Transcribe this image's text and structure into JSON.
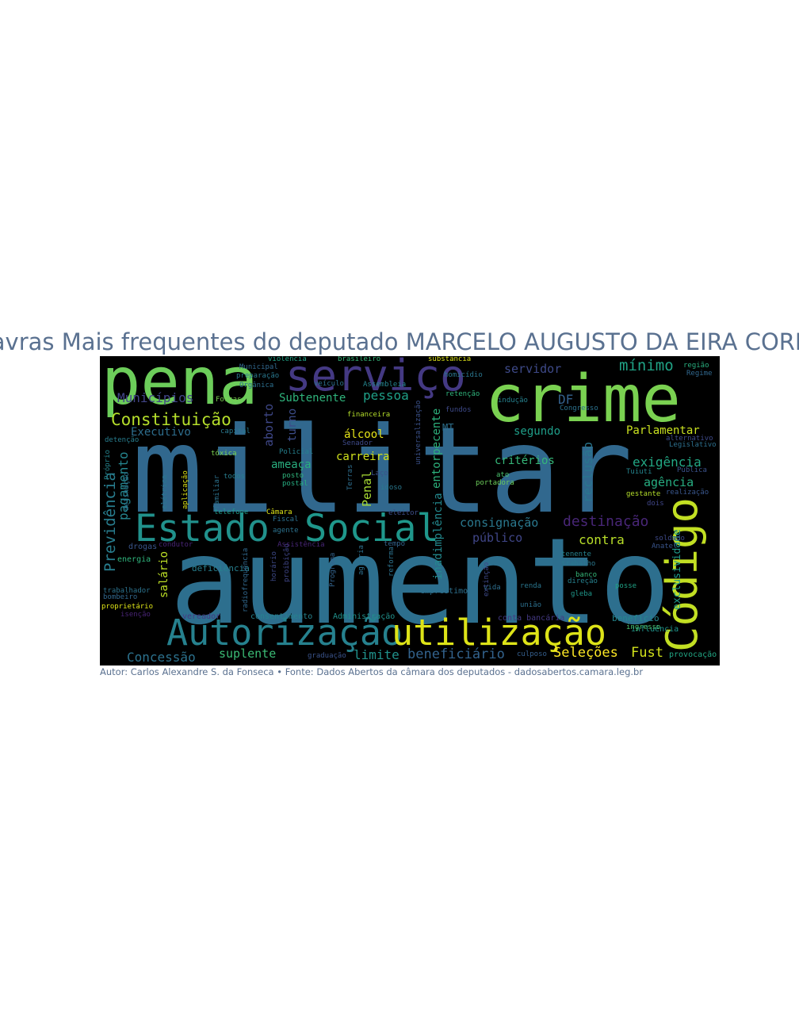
{
  "title": "Palavras Mais frequentes do deputado MARCELO AUGUSTO DA EIRA CORRÊA",
  "caption": "Autor: Carlos Alexandre S. da Fonseca • Fonte: Dados Abertos da câmara dos deputados - dadosabertos.camara.leg.br",
  "colors": {
    "background": "#000000",
    "title": "#5a7190",
    "caption": "#5a7190"
  },
  "words": [
    {
      "text": "militar",
      "color": "#31688e"
    },
    {
      "text": "aumento",
      "color": "#2d6f8e"
    },
    {
      "text": "crime",
      "color": "#7ad151"
    },
    {
      "text": "pena",
      "color": "#6ccd5a"
    },
    {
      "text": "serviço",
      "color": "#443983"
    },
    {
      "text": "Estado",
      "color": "#21918c"
    },
    {
      "text": "Social",
      "color": "#1f978b"
    },
    {
      "text": "Autorização",
      "color": "#26818e"
    },
    {
      "text": "utilização",
      "color": "#dde318"
    },
    {
      "text": "Código",
      "color": "#c2df23"
    },
    {
      "text": "Constituição",
      "color": "#b5de2b"
    },
    {
      "text": "Municípios",
      "color": "#414487"
    },
    {
      "text": "servidor",
      "color": "#3e4a89"
    },
    {
      "text": "mínimo",
      "color": "#20a386"
    },
    {
      "text": "destinação",
      "color": "#482677"
    },
    {
      "text": "consignação",
      "color": "#2a788e"
    },
    {
      "text": "Previdência",
      "color": "#287d8e"
    },
    {
      "text": "pagamento",
      "color": "#25858e"
    },
    {
      "text": "Concessão",
      "color": "#2c728e"
    },
    {
      "text": "beneficiário",
      "color": "#33638d"
    },
    {
      "text": "limite",
      "color": "#20928c"
    },
    {
      "text": "suplente",
      "color": "#3bbb75"
    },
    {
      "text": "Seleções",
      "color": "#fde725"
    },
    {
      "text": "Fust",
      "color": "#d2e21b"
    },
    {
      "text": "contra",
      "color": "#b8de29"
    },
    {
      "text": "público",
      "color": "#404688"
    },
    {
      "text": "exigência",
      "color": "#22a884"
    },
    {
      "text": "agência",
      "color": "#27ad81"
    },
    {
      "text": "critérios",
      "color": "#35b779"
    },
    {
      "text": "Parlamentar",
      "color": "#c8e020"
    },
    {
      "text": "carreira",
      "color": "#d0e11c"
    },
    {
      "text": "pessoa",
      "color": "#1fa088"
    },
    {
      "text": "Subtenente",
      "color": "#2fb47c"
    },
    {
      "text": "álcool",
      "color": "#e5e419"
    },
    {
      "text": "ameaça",
      "color": "#29af7f"
    },
    {
      "text": "Executivo",
      "color": "#2e6e8e"
    },
    {
      "text": "DF",
      "color": "#34618d"
    },
    {
      "text": "segundo",
      "color": "#1f9e89"
    },
    {
      "text": "salário",
      "color": "#bddf26"
    },
    {
      "text": "Penal",
      "color": "#a8db34"
    },
    {
      "text": "reclusão",
      "color": "#2a768e"
    },
    {
      "text": "inadimplência",
      "color": "#23898e"
    },
    {
      "text": "entorpecente",
      "color": "#2db27d"
    },
    {
      "text": "aborto",
      "color": "#3f4889"
    },
    {
      "text": "turno",
      "color": "#3d4d8a"
    },
    {
      "text": "exclusividade",
      "color": "#1f9a8a"
    },
    {
      "text": "deficiência",
      "color": "#277f8e"
    },
    {
      "text": "empréstimo",
      "color": "#2d708e"
    },
    {
      "text": "benefício",
      "color": "#24868e"
    },
    {
      "text": "influência",
      "color": "#1f948c"
    },
    {
      "text": "provocação",
      "color": "#22a785"
    },
    {
      "text": "ingresso",
      "color": "#4ac16d"
    },
    {
      "text": "graduação",
      "color": "#3a548c"
    },
    {
      "text": "culposo",
      "color": "#355f8d"
    },
    {
      "text": "Administração",
      "color": "#21918c"
    },
    {
      "text": "vereador",
      "color": "#443a83"
    },
    {
      "text": "consentimento",
      "color": "#26828e"
    },
    {
      "text": "drogas",
      "color": "#39568c"
    },
    {
      "text": "energia",
      "color": "#2fb47c"
    },
    {
      "text": "proprietário",
      "color": "#dde318"
    },
    {
      "text": "trabalhador",
      "color": "#2c738e"
    },
    {
      "text": "bombeiro",
      "color": "#31688e"
    },
    {
      "text": "isenção",
      "color": "#482475"
    },
    {
      "text": "renda",
      "color": "#2a768e"
    },
    {
      "text": "vida",
      "color": "#2e6f8e"
    },
    {
      "text": "banco",
      "color": "#35b779"
    },
    {
      "text": "direção",
      "color": "#26818e"
    },
    {
      "text": "trabalho",
      "color": "#2a788e"
    },
    {
      "text": "união",
      "color": "#2d708e"
    },
    {
      "text": "gleba",
      "color": "#1f978b"
    },
    {
      "text": "posse",
      "color": "#20a386"
    },
    {
      "text": "soldado",
      "color": "#3e4a89"
    },
    {
      "text": "Anatel",
      "color": "#39558c"
    },
    {
      "text": "gestante",
      "color": "#b5de2b"
    },
    {
      "text": "dois",
      "color": "#404688"
    },
    {
      "text": "Tuiuti",
      "color": "#25848e"
    },
    {
      "text": "portadora",
      "color": "#6ccd5a"
    },
    {
      "text": "ato",
      "color": "#4ac16d"
    },
    {
      "text": "Laço",
      "color": "#3b528b"
    },
    {
      "text": "idoso",
      "color": "#2a788e"
    },
    {
      "text": "eleitor",
      "color": "#3d4e8a"
    },
    {
      "text": "tempo",
      "color": "#33638d"
    },
    {
      "text": "agente",
      "color": "#2c728e"
    },
    {
      "text": "Fiscal",
      "color": "#2d708e"
    },
    {
      "text": "Câmara",
      "color": "#dde318"
    },
    {
      "text": "telefone",
      "color": "#1f9a8a"
    },
    {
      "text": "elétrica",
      "color": "#2a768e"
    },
    {
      "text": "Policial",
      "color": "#26818e"
    },
    {
      "text": "postal",
      "color": "#27ad81"
    },
    {
      "text": "posto",
      "color": "#2fb47c"
    },
    {
      "text": "tóxica",
      "color": "#7ad151"
    },
    {
      "text": "familiar",
      "color": "#2c728e"
    },
    {
      "text": "todos",
      "color": "#287d8e"
    },
    {
      "text": "capital",
      "color": "#2a788e"
    },
    {
      "text": "Senador",
      "color": "#3e4a89"
    },
    {
      "text": "Terras",
      "color": "#2e6e8e"
    },
    {
      "text": "financeira",
      "color": "#b5de2b"
    },
    {
      "text": "veículo",
      "color": "#2c728e"
    },
    {
      "text": "Assembleia",
      "color": "#25858e"
    },
    {
      "text": "Forças",
      "color": "#7ad151"
    },
    {
      "text": "preparação",
      "color": "#2a788e"
    },
    {
      "text": "Orgânica",
      "color": "#2d708e"
    },
    {
      "text": "Municipal",
      "color": "#31688e"
    },
    {
      "text": "violência",
      "color": "#20a386"
    },
    {
      "text": "brasileiro",
      "color": "#35b779"
    },
    {
      "text": "substância",
      "color": "#dde318"
    },
    {
      "text": "retenção",
      "color": "#2fb47c"
    },
    {
      "text": "fundos",
      "color": "#3e4a89"
    },
    {
      "text": "indução",
      "color": "#26818e"
    },
    {
      "text": "Congresso",
      "color": "#2c728e"
    },
    {
      "text": "região",
      "color": "#29af7f"
    },
    {
      "text": "Regime",
      "color": "#31688e"
    },
    {
      "text": "alternativo",
      "color": "#3e4a89"
    },
    {
      "text": "Legislativo",
      "color": "#2d708e"
    },
    {
      "text": "Pública",
      "color": "#3b528b"
    },
    {
      "text": "realização",
      "color": "#39568c"
    },
    {
      "text": "definição",
      "color": "#2c728e"
    },
    {
      "text": "Próprio",
      "color": "#25858e"
    },
    {
      "text": "detenção",
      "color": "#287d8e"
    },
    {
      "text": "homicídio",
      "color": "#2a768e"
    },
    {
      "text": "MT",
      "color": "#2d708e"
    },
    {
      "text": "radiofrequência",
      "color": "#31688e"
    },
    {
      "text": "horário",
      "color": "#3e4a89"
    },
    {
      "text": "proibição",
      "color": "#404688"
    },
    {
      "text": "Assistência",
      "color": "#482677"
    },
    {
      "text": "Programa",
      "color": "#33638d"
    },
    {
      "text": "agrária",
      "color": "#2d708e"
    },
    {
      "text": "reforma",
      "color": "#2c728e"
    },
    {
      "text": "tenente",
      "color": "#26818e"
    },
    {
      "text": "extinção",
      "color": "#3e4a89"
    },
    {
      "text": "conta bancária",
      "color": "#443983"
    },
    {
      "text": "universalização",
      "color": "#3b528b"
    },
    {
      "text": "condutor",
      "color": "#482475"
    },
    {
      "text": "aplicação",
      "color": "#dde318"
    }
  ]
}
